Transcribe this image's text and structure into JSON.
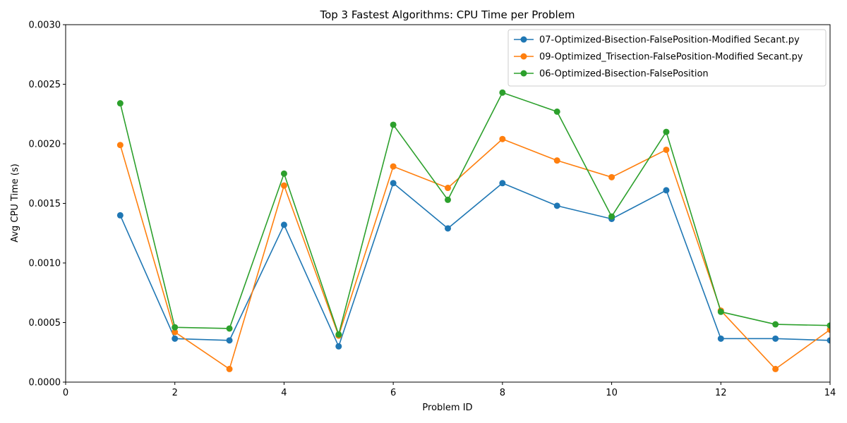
{
  "chart_data": {
    "type": "line",
    "title": "Top 3 Fastest Algorithms: CPU Time per Problem",
    "xlabel": "Problem ID",
    "ylabel": "Avg CPU Time (s)",
    "xlim": [
      0,
      14
    ],
    "ylim": [
      0,
      0.003
    ],
    "xticks": [
      "0",
      "2",
      "4",
      "6",
      "8",
      "10",
      "12",
      "14"
    ],
    "yticks": [
      "0.0000",
      "0.0005",
      "0.0010",
      "0.0015",
      "0.0020",
      "0.0025",
      "0.0030"
    ],
    "grid": false,
    "legend_position": "top-right",
    "x": [
      1,
      2,
      3,
      4,
      5,
      6,
      7,
      8,
      9,
      10,
      11,
      12,
      13,
      14
    ],
    "series": [
      {
        "name": "07-Optimized-Bisection-FalsePosition-Modified Secant.py",
        "color": "#1f77b4",
        "values": [
          0.0014,
          0.000365,
          0.00035,
          0.00132,
          0.0003,
          0.00167,
          0.00129,
          0.00167,
          0.00148,
          0.00137,
          0.00161,
          0.000365,
          0.000365,
          0.00035
        ]
      },
      {
        "name": "09-Optimized_Trisection-FalsePosition-Modified Secant.py",
        "color": "#ff7f0e",
        "values": [
          0.00199,
          0.00042,
          0.00011,
          0.00165,
          0.00039,
          0.00181,
          0.00163,
          0.00204,
          0.00186,
          0.00172,
          0.00195,
          0.0006,
          0.00011,
          0.00044
        ]
      },
      {
        "name": "06-Optimized-Bisection-FalsePosition",
        "color": "#2ca02c",
        "values": [
          0.00234,
          0.00046,
          0.00045,
          0.00175,
          0.0004,
          0.00216,
          0.00153,
          0.00243,
          0.00227,
          0.00139,
          0.0021,
          0.00059,
          0.000485,
          0.000475
        ]
      }
    ]
  }
}
